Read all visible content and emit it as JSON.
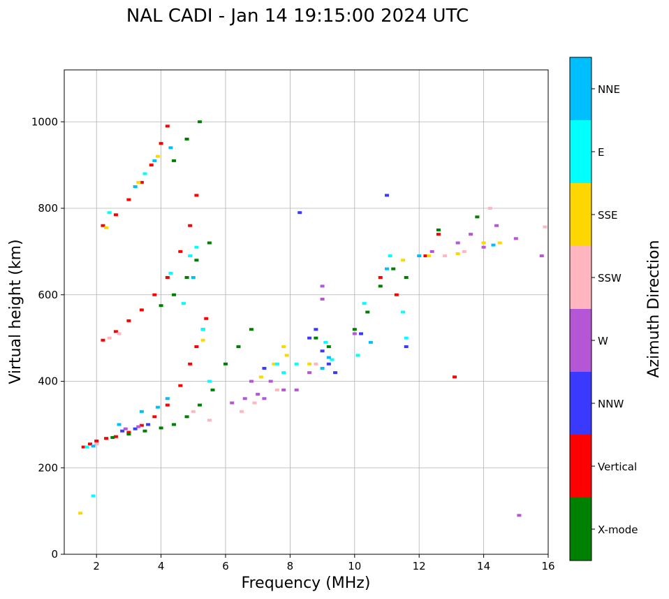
{
  "chart_data": {
    "type": "scatter",
    "title": "NAL CADI - Jan 14 19:15:00 2024 UTC",
    "xlabel": "Frequency (MHz)",
    "ylabel": "Virtual height (km)",
    "xlim": [
      1,
      16
    ],
    "ylim": [
      0,
      1120
    ],
    "xticks": [
      2,
      4,
      6,
      8,
      10,
      12,
      14,
      16
    ],
    "yticks": [
      0,
      200,
      400,
      600,
      800,
      1000
    ],
    "grid": true,
    "colorbar": {
      "label": "Azimuth Direction",
      "categories": [
        {
          "name": "X-mode",
          "color": "#008000"
        },
        {
          "name": "Vertical",
          "color": "#ff0000"
        },
        {
          "name": "NNW",
          "color": "#3a3aff"
        },
        {
          "name": "W",
          "color": "#b456d6"
        },
        {
          "name": "SSW",
          "color": "#ffb6c1"
        },
        {
          "name": "SSE",
          "color": "#ffd700"
        },
        {
          "name": "E",
          "color": "#00ffff"
        },
        {
          "name": "NNE",
          "color": "#00bfff"
        }
      ]
    },
    "series": [
      {
        "name": "Vertical",
        "points": [
          [
            1.6,
            248
          ],
          [
            1.8,
            255
          ],
          [
            2.0,
            262
          ],
          [
            2.3,
            268
          ],
          [
            2.6,
            272
          ],
          [
            3.0,
            282
          ],
          [
            3.4,
            298
          ],
          [
            3.8,
            318
          ],
          [
            4.2,
            345
          ],
          [
            4.6,
            390
          ],
          [
            4.9,
            440
          ],
          [
            5.1,
            480
          ],
          [
            5.3,
            520
          ],
          [
            5.4,
            545
          ],
          [
            2.2,
            495
          ],
          [
            2.6,
            515
          ],
          [
            3.0,
            540
          ],
          [
            3.4,
            565
          ],
          [
            3.8,
            600
          ],
          [
            4.2,
            640
          ],
          [
            4.6,
            700
          ],
          [
            4.9,
            760
          ],
          [
            5.1,
            830
          ],
          [
            2.2,
            760
          ],
          [
            2.6,
            785
          ],
          [
            3.0,
            820
          ],
          [
            3.4,
            860
          ],
          [
            3.7,
            900
          ],
          [
            4.0,
            950
          ],
          [
            4.2,
            990
          ],
          [
            12.2,
            690
          ],
          [
            12.6,
            740
          ],
          [
            13.1,
            410
          ],
          [
            11.3,
            600
          ],
          [
            10.8,
            640
          ]
        ]
      },
      {
        "name": "X-mode",
        "points": [
          [
            2.5,
            270
          ],
          [
            3.0,
            278
          ],
          [
            3.5,
            285
          ],
          [
            4.0,
            292
          ],
          [
            4.4,
            300
          ],
          [
            4.8,
            318
          ],
          [
            5.2,
            345
          ],
          [
            5.6,
            380
          ],
          [
            6.0,
            440
          ],
          [
            6.4,
            480
          ],
          [
            6.8,
            520
          ],
          [
            4.0,
            575
          ],
          [
            4.4,
            600
          ],
          [
            4.8,
            640
          ],
          [
            5.1,
            680
          ],
          [
            5.5,
            720
          ],
          [
            4.4,
            910
          ],
          [
            4.8,
            960
          ],
          [
            5.2,
            1000
          ],
          [
            10.0,
            520
          ],
          [
            10.4,
            560
          ],
          [
            10.8,
            620
          ],
          [
            11.2,
            660
          ],
          [
            11.6,
            640
          ],
          [
            13.8,
            780
          ],
          [
            12.6,
            750
          ],
          [
            9.2,
            480
          ],
          [
            8.8,
            500
          ]
        ]
      },
      {
        "name": "NNW",
        "points": [
          [
            2.8,
            285
          ],
          [
            3.2,
            290
          ],
          [
            3.6,
            300
          ],
          [
            8.6,
            500
          ],
          [
            8.8,
            520
          ],
          [
            9.0,
            470
          ],
          [
            9.2,
            440
          ],
          [
            9.4,
            420
          ],
          [
            10.2,
            510
          ],
          [
            11.6,
            480
          ],
          [
            11.0,
            830
          ],
          [
            8.3,
            790
          ],
          [
            7.2,
            430
          ]
        ]
      },
      {
        "name": "W",
        "points": [
          [
            2.9,
            290
          ],
          [
            3.3,
            295
          ],
          [
            6.2,
            350
          ],
          [
            6.6,
            360
          ],
          [
            7.0,
            370
          ],
          [
            7.4,
            400
          ],
          [
            7.8,
            380
          ],
          [
            8.2,
            380
          ],
          [
            8.6,
            420
          ],
          [
            9.0,
            590
          ],
          [
            9.0,
            620
          ],
          [
            10.0,
            510
          ],
          [
            12.4,
            700
          ],
          [
            13.2,
            720
          ],
          [
            13.6,
            740
          ],
          [
            14.0,
            710
          ],
          [
            14.4,
            760
          ],
          [
            15.0,
            730
          ],
          [
            15.8,
            690
          ],
          [
            15.1,
            90
          ],
          [
            6.8,
            400
          ],
          [
            7.2,
            360
          ]
        ]
      },
      {
        "name": "SSW",
        "points": [
          [
            2.4,
            500
          ],
          [
            2.7,
            510
          ],
          [
            2.0,
            255
          ],
          [
            5.0,
            330
          ],
          [
            5.5,
            310
          ],
          [
            6.5,
            330
          ],
          [
            6.9,
            350
          ],
          [
            7.6,
            380
          ],
          [
            12.8,
            690
          ],
          [
            13.4,
            700
          ],
          [
            14.2,
            800
          ],
          [
            15.9,
            757
          ],
          [
            8.8,
            440
          ]
        ]
      },
      {
        "name": "SSE",
        "points": [
          [
            1.5,
            95
          ],
          [
            2.3,
            755
          ],
          [
            3.3,
            860
          ],
          [
            3.9,
            920
          ],
          [
            5.3,
            495
          ],
          [
            7.1,
            410
          ],
          [
            7.5,
            440
          ],
          [
            7.8,
            480
          ],
          [
            7.9,
            460
          ],
          [
            11.5,
            680
          ],
          [
            12.3,
            690
          ],
          [
            13.2,
            695
          ],
          [
            14.0,
            720
          ],
          [
            14.5,
            720
          ],
          [
            8.6,
            440
          ]
        ]
      },
      {
        "name": "E",
        "points": [
          [
            1.7,
            248
          ],
          [
            1.9,
            135
          ],
          [
            2.4,
            790
          ],
          [
            3.5,
            880
          ],
          [
            4.3,
            650
          ],
          [
            4.7,
            580
          ],
          [
            4.9,
            690
          ],
          [
            5.1,
            710
          ],
          [
            5.3,
            520
          ],
          [
            5.5,
            400
          ],
          [
            7.6,
            440
          ],
          [
            7.8,
            420
          ],
          [
            8.2,
            440
          ],
          [
            9.1,
            490
          ],
          [
            9.3,
            450
          ],
          [
            10.3,
            580
          ],
          [
            10.1,
            460
          ],
          [
            11.6,
            500
          ],
          [
            11.1,
            690
          ],
          [
            11.5,
            560
          ]
        ]
      },
      {
        "name": "NNE",
        "points": [
          [
            1.9,
            250
          ],
          [
            2.7,
            300
          ],
          [
            3.4,
            330
          ],
          [
            3.9,
            340
          ],
          [
            4.2,
            360
          ],
          [
            3.2,
            850
          ],
          [
            3.8,
            910
          ],
          [
            4.3,
            940
          ],
          [
            5.0,
            640
          ],
          [
            9.2,
            455
          ],
          [
            9.0,
            430
          ],
          [
            10.5,
            490
          ],
          [
            12.0,
            690
          ],
          [
            14.3,
            715
          ],
          [
            11.0,
            660
          ]
        ]
      }
    ]
  }
}
